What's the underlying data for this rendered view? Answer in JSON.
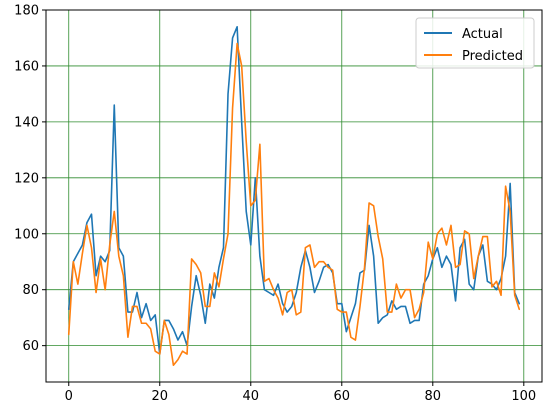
{
  "chart_data": {
    "type": "line",
    "title": "",
    "xlabel": "",
    "ylabel": "",
    "xlim": [
      -5,
      104
    ],
    "ylim": [
      47,
      180
    ],
    "xticks": [
      0,
      20,
      40,
      60,
      80,
      100
    ],
    "yticks": [
      60,
      80,
      100,
      120,
      140,
      160,
      180
    ],
    "grid": true,
    "grid_color": "#2e8b2e",
    "legend_position": "top-right",
    "series": [
      {
        "name": "Actual",
        "color": "#1f77b4",
        "values": [
          73,
          90,
          93,
          96,
          104,
          107,
          85,
          92,
          90,
          94,
          146,
          95,
          92,
          72,
          72,
          79,
          70,
          75,
          69,
          71,
          57,
          69,
          69,
          66,
          62,
          65,
          60,
          74,
          85,
          78,
          68,
          82,
          77,
          88,
          95,
          150,
          170,
          174,
          140,
          108,
          96,
          120,
          92,
          80,
          79,
          78,
          82,
          75,
          72,
          74,
          79,
          88,
          94,
          88,
          79,
          83,
          88,
          89,
          86,
          75,
          75,
          65,
          70,
          75,
          86,
          87,
          103,
          92,
          68,
          70,
          71,
          76,
          73,
          74,
          74,
          68,
          69,
          69,
          82,
          85,
          91,
          95,
          88,
          92,
          89,
          76,
          95,
          98,
          82,
          80,
          92,
          96,
          83,
          82,
          80,
          84,
          92,
          118,
          79,
          75
        ]
      },
      {
        "name": "Predicted",
        "color": "#ff7f0e",
        "values": [
          64,
          90,
          82,
          93,
          103,
          95,
          79,
          91,
          80,
          96,
          108,
          92,
          85,
          63,
          74,
          74,
          68,
          68,
          66,
          58,
          57,
          69,
          64,
          53,
          55,
          58,
          57,
          91,
          89,
          86,
          74,
          74,
          86,
          81,
          91,
          100,
          145,
          168,
          160,
          133,
          110,
          112,
          132,
          83,
          84,
          80,
          77,
          71,
          79,
          80,
          71,
          72,
          95,
          96,
          88,
          90,
          90,
          88,
          87,
          73,
          72,
          72,
          63,
          62,
          74,
          88,
          111,
          110,
          99,
          91,
          72,
          72,
          82,
          77,
          80,
          80,
          70,
          73,
          79,
          97,
          91,
          100,
          102,
          96,
          103,
          88,
          89,
          101,
          100,
          84,
          92,
          99,
          99,
          81,
          83,
          78,
          117,
          108,
          78,
          73
        ]
      }
    ]
  }
}
